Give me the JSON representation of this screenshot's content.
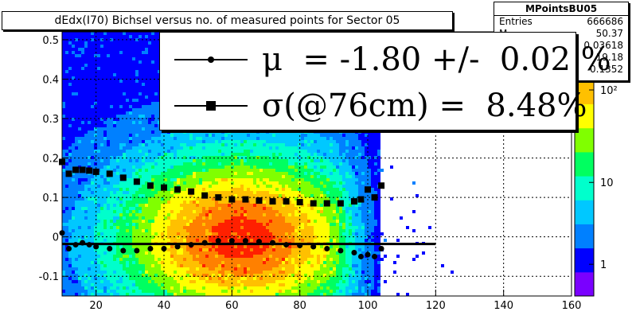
{
  "title": "dEdx(I70) Bichsel versus no. of measured points for Sector 05",
  "stats": {
    "name": "MPointsBU05",
    "rows": [
      {
        "label": "Entries",
        "value": "666686"
      },
      {
        "label": "M",
        "value": "50.37"
      },
      {
        "label": "",
        "value": "0.03618"
      },
      {
        "label": "",
        "value": "19.18"
      },
      {
        "label": "",
        "value": "0.1352"
      }
    ]
  },
  "legend": {
    "mu_text": "μ  = -1.80 +/-  0.02 %",
    "sigma_text": "σ(@76cm) =  8.48%"
  },
  "colors": {
    "palette": [
      "#7a00ff",
      "#0000ff",
      "#0080ff",
      "#00c8ff",
      "#00ffcc",
      "#00ff60",
      "#80ff00",
      "#ffff00",
      "#ffc000",
      "#ff8000",
      "#ff2000"
    ],
    "markers": "#000000"
  },
  "chart_data": {
    "type": "heatmap",
    "title": "dEdx(I70) Bichsel versus no. of measured points for Sector 05",
    "xlabel": "",
    "ylabel": "",
    "xlim": [
      10,
      160
    ],
    "ylim": [
      -0.15,
      0.52
    ],
    "x_ticks": [
      "20",
      "40",
      "60",
      "80",
      "100",
      "120",
      "140",
      "160"
    ],
    "y_ticks": [
      "-0.1",
      "0",
      "0.1",
      "0.2",
      "0.3",
      "0.4",
      "0.5"
    ],
    "z_scale": "log",
    "z_ticks": [
      "1",
      "10",
      "10²"
    ],
    "grid": true,
    "series": [
      {
        "name": "mean",
        "marker": "circle",
        "points": [
          [
            10,
            0.01
          ],
          [
            12,
            -0.03
          ],
          [
            14,
            -0.02
          ],
          [
            16,
            -0.015
          ],
          [
            18,
            -0.02
          ],
          [
            20,
            -0.025
          ],
          [
            24,
            -0.03
          ],
          [
            28,
            -0.035
          ],
          [
            32,
            -0.035
          ],
          [
            36,
            -0.03
          ],
          [
            40,
            -0.03
          ],
          [
            44,
            -0.025
          ],
          [
            48,
            -0.02
          ],
          [
            52,
            -0.015
          ],
          [
            56,
            -0.01
          ],
          [
            60,
            -0.01
          ],
          [
            64,
            -0.01
          ],
          [
            68,
            -0.012
          ],
          [
            72,
            -0.015
          ],
          [
            76,
            -0.02
          ],
          [
            80,
            -0.022
          ],
          [
            84,
            -0.025
          ],
          [
            88,
            -0.03
          ],
          [
            92,
            -0.035
          ],
          [
            96,
            -0.04
          ],
          [
            98,
            -0.05
          ],
          [
            100,
            -0.045
          ],
          [
            102,
            -0.05
          ],
          [
            104,
            -0.03
          ]
        ]
      },
      {
        "name": "sigma",
        "marker": "square",
        "points": [
          [
            10,
            0.19
          ],
          [
            12,
            0.16
          ],
          [
            14,
            0.17
          ],
          [
            16,
            0.17
          ],
          [
            18,
            0.168
          ],
          [
            20,
            0.165
          ],
          [
            24,
            0.16
          ],
          [
            28,
            0.15
          ],
          [
            32,
            0.14
          ],
          [
            36,
            0.13
          ],
          [
            40,
            0.125
          ],
          [
            44,
            0.12
          ],
          [
            48,
            0.115
          ],
          [
            52,
            0.105
          ],
          [
            56,
            0.1
          ],
          [
            60,
            0.095
          ],
          [
            64,
            0.095
          ],
          [
            68,
            0.092
          ],
          [
            72,
            0.09
          ],
          [
            76,
            0.09
          ],
          [
            80,
            0.088
          ],
          [
            84,
            0.085
          ],
          [
            88,
            0.085
          ],
          [
            92,
            0.085
          ],
          [
            96,
            0.09
          ],
          [
            98,
            0.095
          ],
          [
            100,
            0.12
          ],
          [
            102,
            0.1
          ],
          [
            104,
            0.13
          ]
        ]
      }
    ],
    "fit_line": {
      "x": [
        10,
        120
      ],
      "y": -0.018
    }
  }
}
